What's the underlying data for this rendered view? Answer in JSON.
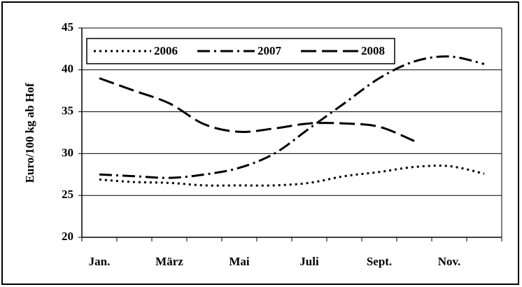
{
  "chart_data": {
    "type": "line",
    "y_label": "Euro/100 kg ab Hof",
    "categories": [
      "Jan.",
      null,
      "März",
      null,
      "Mai",
      null,
      "Juli",
      null,
      "Sept.",
      null,
      "Nov.",
      null
    ],
    "series": [
      {
        "name": "2006",
        "color": "#000000",
        "line_style": "dotted",
        "values": [
          26.9,
          26.6,
          26.5,
          26.2,
          26.2,
          26.2,
          26.5,
          27.3,
          27.8,
          28.4,
          28.5,
          27.6
        ]
      },
      {
        "name": "2007",
        "color": "#000000",
        "line_style": "dash-dot",
        "values": [
          27.5,
          27.3,
          27.1,
          27.5,
          28.3,
          30.0,
          33.0,
          36.0,
          39.0,
          41.0,
          41.6,
          40.7
        ]
      },
      {
        "name": "2008",
        "color": "#000000",
        "line_style": "dashed",
        "values": [
          39.0,
          37.5,
          36.0,
          33.5,
          32.6,
          33.0,
          33.6,
          33.6,
          33.2,
          31.5,
          null,
          null
        ]
      }
    ],
    "ylim": [
      20,
      45
    ],
    "yticks": [
      20,
      25,
      30,
      35,
      40,
      45
    ],
    "grid": true,
    "legend": "top-left"
  }
}
